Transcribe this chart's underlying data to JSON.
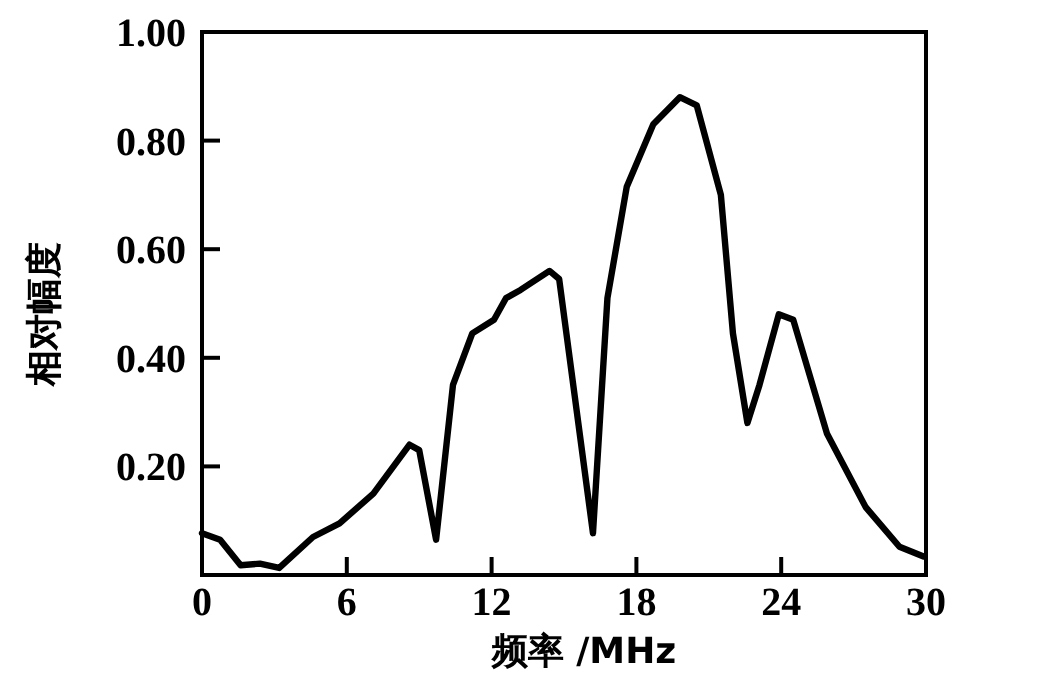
{
  "chart_data": {
    "type": "line",
    "xlabel": "频率 /MHz",
    "ylabel": "相对幅度",
    "xlim": [
      0,
      30
    ],
    "ylim": [
      0,
      1
    ],
    "xticks": [
      0,
      6,
      12,
      18,
      24,
      30
    ],
    "yticks": [
      {
        "value": 0.2,
        "label": "0.20"
      },
      {
        "value": 0.4,
        "label": "0.40"
      },
      {
        "value": 0.6,
        "label": "0.60"
      },
      {
        "value": 0.8,
        "label": "0.80"
      },
      {
        "value": 1.0,
        "label": "1.00"
      }
    ],
    "grid": false,
    "marker": "none",
    "line_style": "solid",
    "series": [
      {
        "color": "#000000",
        "x": [
          0,
          0.75,
          1.6,
          2.4,
          3.2,
          4.6,
          5.7,
          7.1,
          8.6,
          9.0,
          9.7,
          10.4,
          11.2,
          12.1,
          12.6,
          13.2,
          14.4,
          14.8,
          16.2,
          16.8,
          17.6,
          18.7,
          19.8,
          20.5,
          21.5,
          22.0,
          22.6,
          23.1,
          23.9,
          24.5,
          25.9,
          27.5,
          28.9,
          29.9
        ],
        "values": [
          0.077,
          0.065,
          0.018,
          0.021,
          0.013,
          0.07,
          0.095,
          0.15,
          0.24,
          0.23,
          0.065,
          0.35,
          0.445,
          0.47,
          0.51,
          0.525,
          0.56,
          0.545,
          0.077,
          0.51,
          0.715,
          0.83,
          0.88,
          0.865,
          0.7,
          0.445,
          0.28,
          0.35,
          0.48,
          0.47,
          0.26,
          0.125,
          0.052,
          0.034
        ]
      }
    ]
  }
}
